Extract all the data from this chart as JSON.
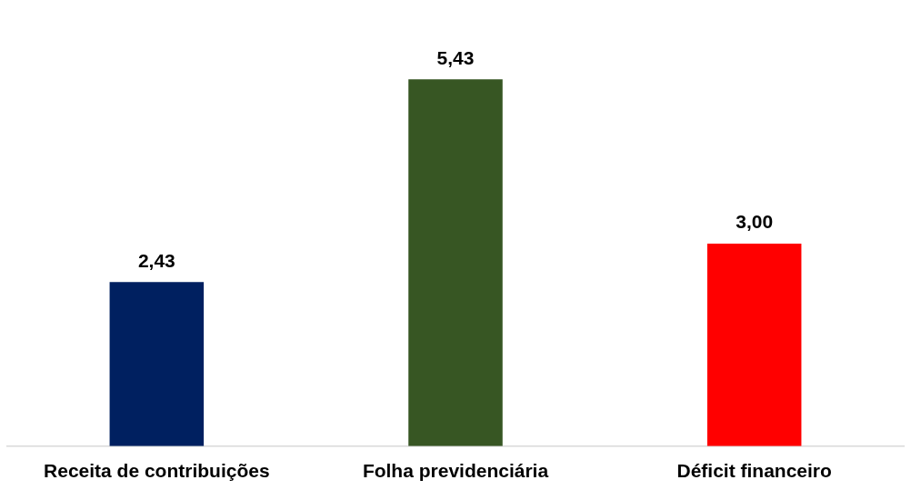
{
  "chart_data": {
    "type": "bar",
    "categories": [
      "Receita de contribuições",
      "Folha previdenciária",
      "Déficit financeiro"
    ],
    "values": [
      2.43,
      5.43,
      3.0
    ],
    "colors": [
      "#002060",
      "#375623",
      "#ff0000"
    ],
    "value_labels": [
      "2,43",
      "5,43",
      "3,00"
    ],
    "grid": false,
    "legend": false
  }
}
